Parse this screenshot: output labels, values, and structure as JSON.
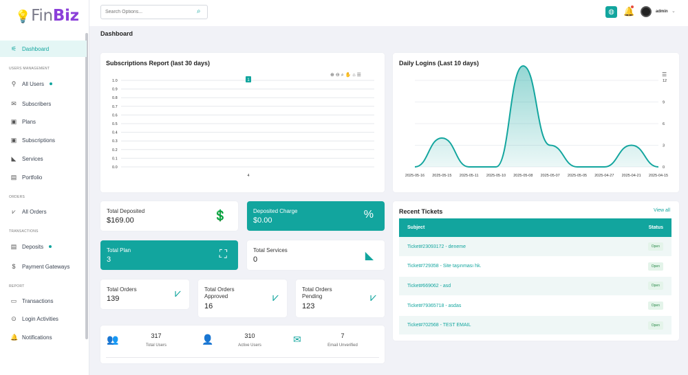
{
  "brand": {
    "name_plain": "Fin",
    "name_accent": "Biz"
  },
  "search": {
    "placeholder": "Search Options..."
  },
  "user": {
    "name": "admin"
  },
  "page_title": "Dashboard",
  "sidebar": {
    "dashboard": "Dashboard",
    "sec_users": "USERS MANAGEMENT",
    "all_users": "All Users",
    "subscribers": "Subscribers",
    "plans": "Plans",
    "subscriptions": "Subscriptions",
    "services": "Services",
    "portfolio": "Portfolio",
    "sec_orders": "ORDERS",
    "all_orders": "All Orders",
    "sec_transactions": "TRANSACTIONS",
    "deposits": "Deposits",
    "payment_gateways": "Payment Gateways",
    "sec_report": "REPORT",
    "transactions": "Transactions",
    "login_activities": "Login Activities",
    "notifications": "Notifications"
  },
  "subs_chart": {
    "title": "Subscriptions Report (last 30 days)",
    "marker": "1"
  },
  "logins_chart": {
    "title": "Daily Logins (Last 10 days)"
  },
  "chart_data": [
    {
      "type": "line",
      "title": "Subscriptions Report (last 30 days)",
      "y_ticks": [
        "1.0",
        "0.9",
        "0.8",
        "0.7",
        "0.6",
        "0.5",
        "0.4",
        "0.3",
        "0.2",
        "0.1",
        "0.0"
      ],
      "ylim": [
        0,
        1
      ],
      "x": [
        "4"
      ],
      "values": [
        1
      ],
      "grid": true
    },
    {
      "type": "area",
      "title": "Daily Logins (Last 10 days)",
      "x": [
        "2025-05-16",
        "2025-05-15",
        "2025-05-11",
        "2025-05-10",
        "2025-05-08",
        "2025-05-07",
        "2025-05-05",
        "2025-04-27",
        "2025-04-21",
        "2025-04-15"
      ],
      "values": [
        0,
        4,
        0,
        0,
        14,
        3,
        0,
        0,
        3,
        0
      ],
      "y_ticks": [
        "12",
        "9",
        "6",
        "3",
        "0"
      ],
      "ylim": [
        0,
        12
      ],
      "grid": true
    }
  ],
  "stats": {
    "total_deposited": {
      "label": "Total Deposited",
      "value": "$169.00"
    },
    "deposited_charge": {
      "label": "Deposited Charge",
      "value": "$0.00"
    },
    "total_plan": {
      "label": "Total Plan",
      "value": "3"
    },
    "total_services": {
      "label": "Total Services",
      "value": "0"
    },
    "total_orders": {
      "label": "Total Orders",
      "value": "139"
    },
    "orders_approved": {
      "label": "Total Orders Approved",
      "value": "16"
    },
    "orders_pending": {
      "label": "Total Orders Pending",
      "value": "123"
    }
  },
  "user_stats": [
    {
      "value": "317",
      "label": "Total Users"
    },
    {
      "value": "310",
      "label": "Active Users"
    },
    {
      "value": "7",
      "label": "Email Unverified"
    }
  ],
  "tickets": {
    "title": "Recent Tickets",
    "view_all": "View all",
    "col_subject": "Subject",
    "col_status": "Status",
    "rows": [
      {
        "subject": "Ticket#23093172 - deneme",
        "status": "Open"
      },
      {
        "subject": "Ticket#729358 - Site taşınması hk.",
        "status": "Open"
      },
      {
        "subject": "Ticket#669062 - asd",
        "status": "Open"
      },
      {
        "subject": "Ticket#79365718 - asdas",
        "status": "Open"
      },
      {
        "subject": "Ticket#702568 - TEST EMAIL",
        "status": "Open"
      }
    ]
  }
}
